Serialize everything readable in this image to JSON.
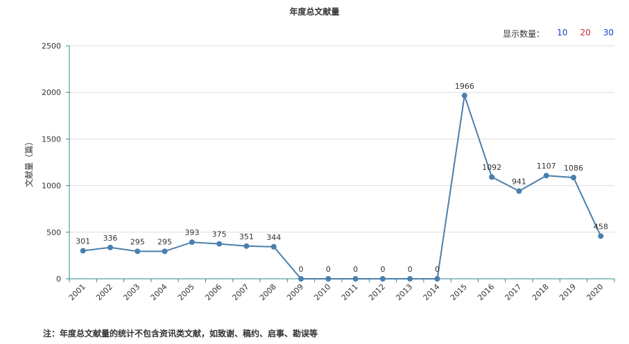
{
  "title": "年度总文献量",
  "display_count": {
    "label": "显示数量：",
    "options": [
      "10",
      "20",
      "30"
    ]
  },
  "note": "注：年度总文献量的统计不包含资讯类文献，如致谢、稿约、启事、勘误等",
  "colors": {
    "line": "#4a7fad",
    "point": "#4a7fad",
    "axis": "#2e8b8b",
    "grid": "#dddddd"
  },
  "chart_data": {
    "type": "line",
    "title": "年度总文献量",
    "xlabel": "",
    "ylabel": "文献量（篇）",
    "ylim": [
      0,
      2500
    ],
    "yticks": [
      0,
      500,
      1000,
      1500,
      2000,
      2500
    ],
    "categories": [
      "2001",
      "2002",
      "2003",
      "2004",
      "2005",
      "2006",
      "2007",
      "2008",
      "2009",
      "2010",
      "2011",
      "2012",
      "2013",
      "2014",
      "2015",
      "2016",
      "2017",
      "2018",
      "2019",
      "2020"
    ],
    "values": [
      301,
      336,
      295,
      295,
      393,
      375,
      351,
      344,
      0,
      0,
      0,
      0,
      0,
      0,
      1966,
      1092,
      941,
      1107,
      1086,
      458
    ],
    "grid": true
  }
}
